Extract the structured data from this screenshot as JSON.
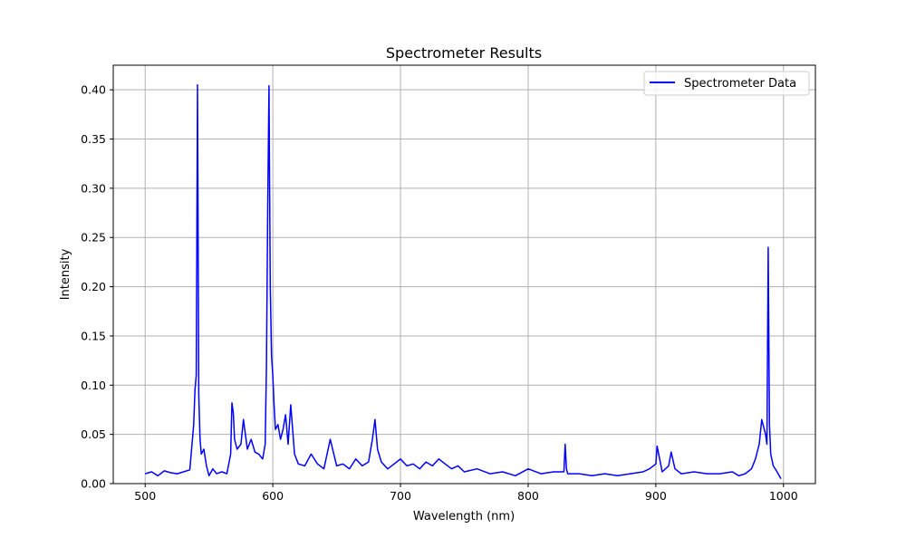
{
  "chart_data": {
    "type": "line",
    "title": "Spectrometer Results",
    "xlabel": "Wavelength (nm)",
    "ylabel": "Intensity",
    "xlim": [
      475,
      1025
    ],
    "ylim": [
      0,
      0.425
    ],
    "xticks": [
      500,
      600,
      700,
      800,
      900,
      1000
    ],
    "yticks": [
      0.0,
      0.05,
      0.1,
      0.15,
      0.2,
      0.25,
      0.3,
      0.35,
      0.4
    ],
    "ytick_labels": [
      "0.00",
      "0.05",
      "0.10",
      "0.15",
      "0.20",
      "0.25",
      "0.30",
      "0.35",
      "0.40"
    ],
    "grid": true,
    "legend_position": "top-right",
    "series": [
      {
        "name": "Spectrometer Data",
        "color": "#0000ff",
        "x": [
          500,
          505,
          510,
          515,
          520,
          525,
          530,
          535,
          538,
          539,
          540,
          541,
          542,
          543,
          544,
          546,
          548,
          550,
          553,
          556,
          560,
          564,
          567,
          568,
          569,
          570,
          572,
          575,
          577,
          580,
          583,
          586,
          589,
          592,
          594,
          595,
          596,
          597,
          598,
          599,
          600,
          601,
          602,
          604,
          606,
          608,
          610,
          612,
          614,
          617,
          620,
          625,
          630,
          635,
          640,
          645,
          650,
          655,
          660,
          665,
          670,
          675,
          678,
          680,
          682,
          685,
          690,
          695,
          700,
          705,
          710,
          715,
          720,
          725,
          730,
          735,
          740,
          745,
          750,
          760,
          770,
          780,
          790,
          800,
          810,
          820,
          828,
          829,
          830,
          831,
          840,
          850,
          860,
          870,
          880,
          890,
          895,
          900,
          901,
          905,
          910,
          912,
          915,
          920,
          930,
          940,
          950,
          960,
          965,
          970,
          975,
          978,
          981,
          983,
          985,
          986,
          987,
          988,
          989,
          990,
          992,
          995,
          998
        ],
        "y": [
          0.01,
          0.012,
          0.008,
          0.013,
          0.011,
          0.01,
          0.012,
          0.014,
          0.06,
          0.095,
          0.11,
          0.405,
          0.09,
          0.045,
          0.03,
          0.035,
          0.018,
          0.008,
          0.015,
          0.01,
          0.012,
          0.01,
          0.03,
          0.082,
          0.072,
          0.045,
          0.035,
          0.04,
          0.065,
          0.035,
          0.045,
          0.032,
          0.03,
          0.025,
          0.04,
          0.12,
          0.28,
          0.404,
          0.2,
          0.13,
          0.11,
          0.08,
          0.055,
          0.06,
          0.045,
          0.055,
          0.07,
          0.04,
          0.08,
          0.03,
          0.02,
          0.018,
          0.03,
          0.02,
          0.015,
          0.045,
          0.018,
          0.02,
          0.015,
          0.025,
          0.018,
          0.022,
          0.045,
          0.065,
          0.035,
          0.022,
          0.015,
          0.02,
          0.025,
          0.018,
          0.02,
          0.015,
          0.022,
          0.018,
          0.025,
          0.02,
          0.015,
          0.018,
          0.012,
          0.015,
          0.01,
          0.012,
          0.008,
          0.015,
          0.01,
          0.012,
          0.012,
          0.04,
          0.015,
          0.01,
          0.01,
          0.008,
          0.01,
          0.008,
          0.01,
          0.012,
          0.015,
          0.02,
          0.038,
          0.012,
          0.018,
          0.032,
          0.015,
          0.01,
          0.012,
          0.01,
          0.01,
          0.012,
          0.008,
          0.01,
          0.015,
          0.025,
          0.04,
          0.065,
          0.055,
          0.05,
          0.04,
          0.24,
          0.06,
          0.03,
          0.018,
          0.012,
          0.005
        ]
      }
    ]
  }
}
